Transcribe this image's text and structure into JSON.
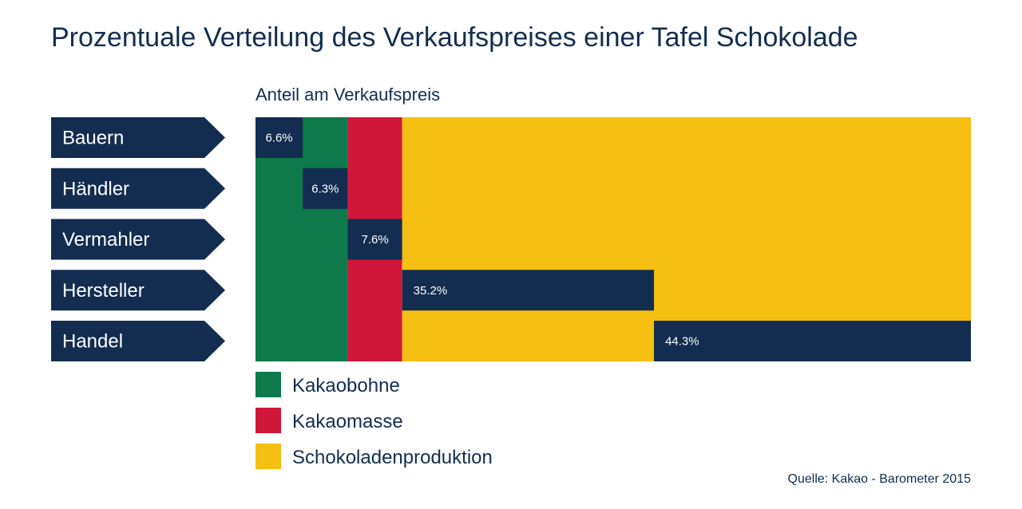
{
  "chart_data": {
    "type": "bar",
    "title": "Prozentuale Verteilung des Verkaufspreises einer Tafel Schokolade",
    "subtitle": "Anteil am Verkaufspreis",
    "orientation": "horizontal-waterfall",
    "categories": [
      "Bauern",
      "Händler",
      "Vermahler",
      "Hersteller",
      "Handel"
    ],
    "values": [
      6.6,
      6.3,
      7.6,
      35.2,
      44.3
    ],
    "value_labels": [
      "6.6%",
      "6.3%",
      "7.6%",
      "35.2%",
      "44.3%"
    ],
    "xlim": [
      0,
      100
    ],
    "groups": [
      {
        "name": "Kakaobohne",
        "stages": [
          "Bauern",
          "Händler"
        ],
        "color": "#0e7a4b"
      },
      {
        "name": "Kakaomasse",
        "stages": [
          "Vermahler"
        ],
        "color": "#d0173a"
      },
      {
        "name": "Schokoladenproduktion",
        "stages": [
          "Hersteller",
          "Handel"
        ],
        "color": "#f5c012"
      }
    ],
    "bar_color": "#132d50",
    "legend": "bottom-left",
    "grid": false,
    "source": "Quelle: Kakao - Barometer 2015"
  }
}
